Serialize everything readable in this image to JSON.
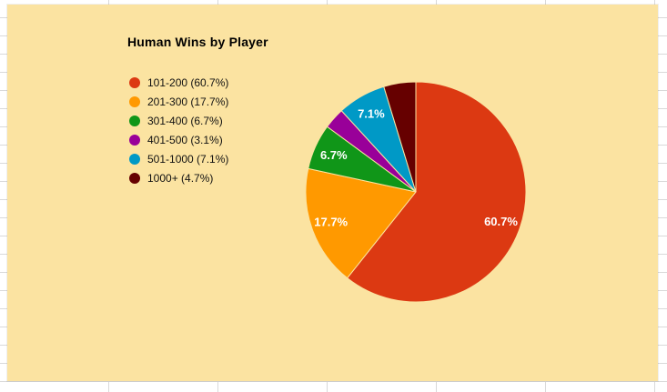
{
  "window": {
    "background": "#ffffff",
    "chart_background": "#fbe3a1",
    "grid_color": "#d9d9d9"
  },
  "chart_data": {
    "type": "pie",
    "title": "Human Wins by Player",
    "categories": [
      "101-200",
      "201-300",
      "301-400",
      "401-500",
      "501-1000",
      "1000+"
    ],
    "values": [
      60.7,
      17.7,
      6.7,
      3.1,
      7.1,
      4.7
    ],
    "colors": [
      "#dc3912",
      "#ff9900",
      "#109618",
      "#990099",
      "#0099c6",
      "#660000"
    ],
    "slice_labels": [
      "60.7%",
      "17.7%",
      "6.7%",
      "",
      "7.1%",
      ""
    ],
    "label_color": "#ffffff",
    "start_angle_deg": 0,
    "direction": "clockwise",
    "legend": {
      "position": "left",
      "labels": [
        "101-200 (60.7%)",
        "201-300 (17.7%)",
        "301-400 (6.7%)",
        "401-500 (3.1%)",
        "501-1000 (7.1%)",
        "1000+ (4.7%)"
      ]
    }
  }
}
